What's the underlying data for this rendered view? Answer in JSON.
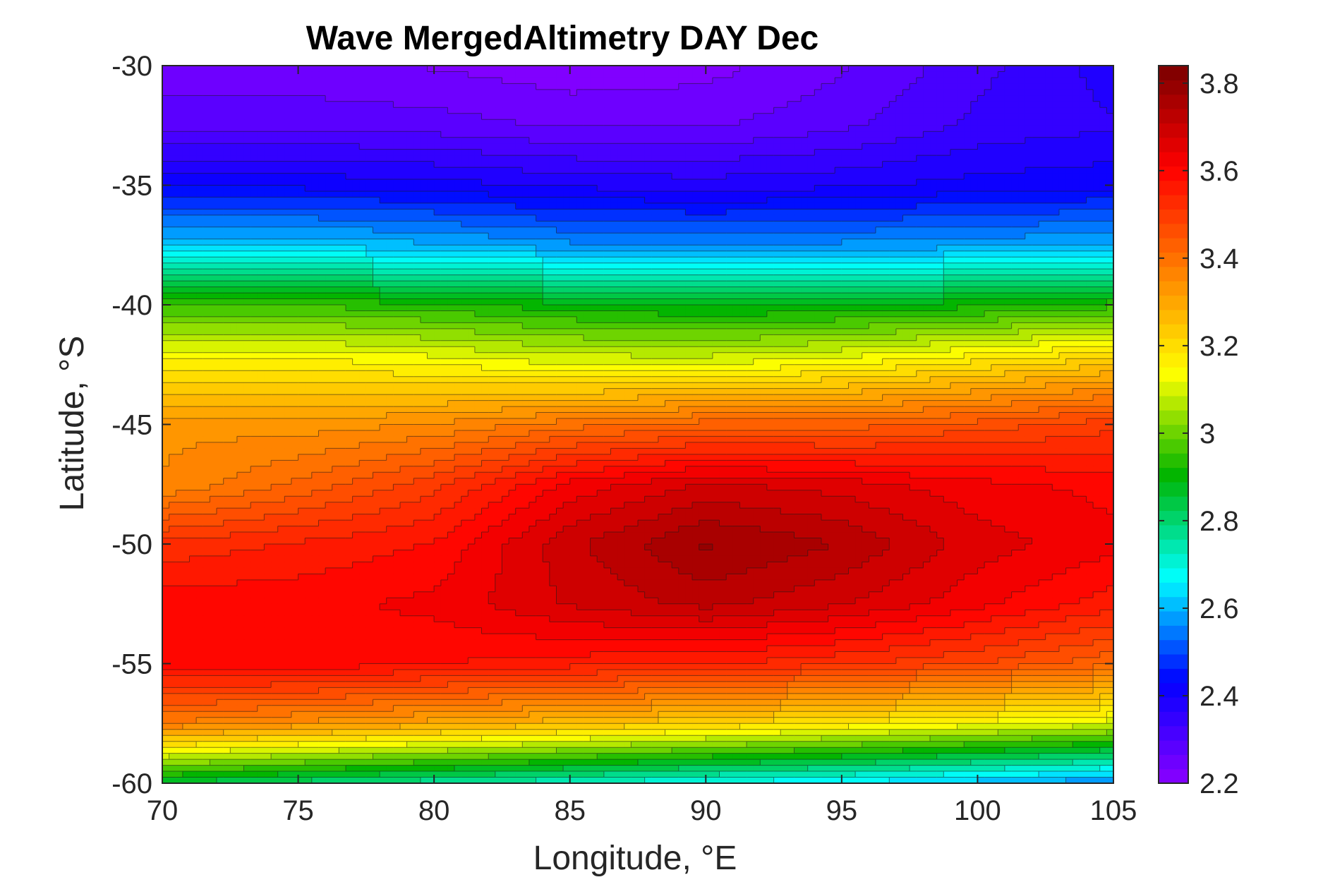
{
  "chart_data": {
    "type": "heatmap",
    "subtype": "filled-contour",
    "title": "Wave MergedAltimetry DAY Dec",
    "xlabel": "Longitude, °E",
    "ylabel": "Latitude, °S",
    "xlim": [
      70,
      105
    ],
    "ylim": [
      -60,
      -30
    ],
    "xticks": [
      70,
      75,
      80,
      85,
      90,
      95,
      100,
      105
    ],
    "xtick_labels": [
      "70",
      "75",
      "80",
      "85",
      "90",
      "95",
      "100",
      "105"
    ],
    "yticks": [
      -30,
      -35,
      -40,
      -45,
      -50,
      -55,
      -60
    ],
    "ytick_labels": [
      "-30",
      "-35",
      "-40",
      "-45",
      "-50",
      "-55",
      "-60"
    ],
    "colorbar": {
      "range": [
        2.2,
        3.84
      ],
      "ticks": [
        2.2,
        2.4,
        2.6,
        2.8,
        3.0,
        3.2,
        3.4,
        3.6,
        3.8
      ],
      "tick_labels": [
        "2.2",
        "2.4",
        "2.6",
        "2.8",
        "3",
        "3.2",
        "3.4",
        "3.6",
        "3.8"
      ],
      "colormap": [
        "#8b00ff",
        "#0000ff",
        "#00ffff",
        "#00b400",
        "#ffff00",
        "#ff8000",
        "#ff0000",
        "#7a0000"
      ]
    },
    "grid": false,
    "latitudes": [
      -30,
      -32.5,
      -35,
      -37.5,
      -40,
      -42.5,
      -45,
      -47.5,
      -50,
      -52.5,
      -55,
      -57.5,
      -60
    ],
    "longitudes": [
      70,
      75,
      80,
      85,
      90,
      95,
      100,
      105
    ],
    "values": [
      [
        2.24,
        2.24,
        2.23,
        2.21,
        2.22,
        2.26,
        2.32,
        2.38
      ],
      [
        2.29,
        2.29,
        2.28,
        2.26,
        2.26,
        2.29,
        2.34,
        2.36
      ],
      [
        2.42,
        2.42,
        2.41,
        2.39,
        2.38,
        2.39,
        2.41,
        2.42
      ],
      [
        2.62,
        2.62,
        2.6,
        2.57,
        2.56,
        2.57,
        2.58,
        2.6
      ],
      [
        2.95,
        2.95,
        2.93,
        2.9,
        2.88,
        2.89,
        2.91,
        2.94
      ],
      [
        3.17,
        3.17,
        3.15,
        3.12,
        3.12,
        3.15,
        3.2,
        3.25
      ],
      [
        3.34,
        3.33,
        3.35,
        3.4,
        3.43,
        3.43,
        3.46,
        3.5
      ],
      [
        3.35,
        3.42,
        3.5,
        3.62,
        3.68,
        3.66,
        3.62,
        3.6
      ],
      [
        3.52,
        3.55,
        3.58,
        3.7,
        3.78,
        3.74,
        3.66,
        3.62
      ],
      [
        3.6,
        3.6,
        3.62,
        3.68,
        3.72,
        3.68,
        3.62,
        3.56
      ],
      [
        3.6,
        3.6,
        3.58,
        3.56,
        3.55,
        3.52,
        3.48,
        3.42
      ],
      [
        3.38,
        3.34,
        3.3,
        3.26,
        3.22,
        3.18,
        3.14,
        3.1
      ],
      [
        2.85,
        2.8,
        2.76,
        2.72,
        2.68,
        2.65,
        2.6,
        2.55
      ]
    ]
  }
}
